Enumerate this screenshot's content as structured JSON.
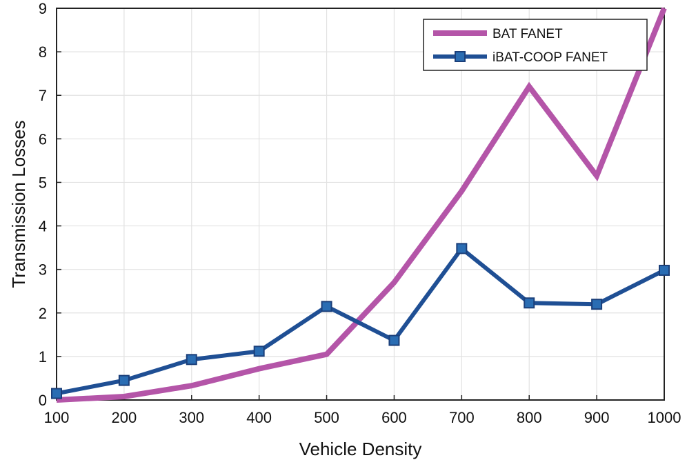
{
  "chart_data": {
    "type": "line",
    "title": "",
    "xlabel": "Vehicle Density",
    "ylabel": "Transmission Losses",
    "x": [
      100,
      200,
      300,
      400,
      500,
      600,
      700,
      800,
      900,
      1000
    ],
    "xlim": [
      100,
      1000
    ],
    "ylim": [
      0,
      9
    ],
    "xticks": [
      100,
      200,
      300,
      400,
      500,
      600,
      700,
      800,
      900,
      1000
    ],
    "yticks": [
      0,
      1,
      2,
      3,
      4,
      5,
      6,
      7,
      8,
      9
    ],
    "grid": true,
    "legend_position": "top-right",
    "series": [
      {
        "name": "BAT FANET",
        "color": "#b455a8",
        "marker": "none",
        "values": [
          0.0,
          0.08,
          0.33,
          0.72,
          1.05,
          2.7,
          4.8,
          7.2,
          5.15,
          9.0
        ]
      },
      {
        "name": "iBAT-COOP FANET",
        "color": "#1f4f94",
        "marker": "square",
        "values": [
          0.15,
          0.45,
          0.93,
          1.12,
          2.15,
          1.37,
          3.48,
          2.23,
          2.2,
          2.98
        ]
      }
    ]
  }
}
